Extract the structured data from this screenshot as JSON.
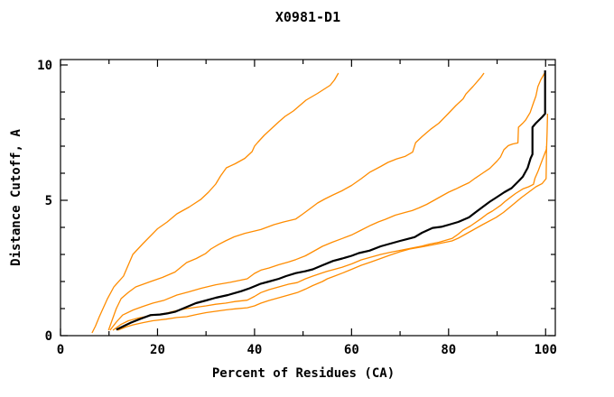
{
  "title": "X0981-D1",
  "chart_data": {
    "type": "line",
    "title": "X0981-D1",
    "xlabel": "Percent of Residues (CA)",
    "ylabel": "Distance Cutoff, A",
    "xlim": [
      0,
      102
    ],
    "ylim": [
      0,
      10.2
    ],
    "grid": false,
    "legend": null,
    "x_ticks_major": [
      0,
      20,
      40,
      60,
      80,
      100
    ],
    "x_ticks_minor": [
      10,
      30,
      50,
      70,
      90
    ],
    "y_ticks_major": [
      0,
      5,
      10
    ],
    "y_ticks_minor": [
      1,
      2,
      3,
      4,
      6,
      7,
      8,
      9
    ],
    "colors": {
      "model_orange": "#ff8c00",
      "highlight_black": "#000000",
      "frame": "#000000",
      "background": "#ffffff"
    },
    "series": [
      {
        "name": "orange-curve-1",
        "color": "#ff8c00",
        "width": 1.3,
        "points": [
          [
            6.5,
            0.1
          ],
          [
            7.2,
            0.35
          ],
          [
            8,
            0.7
          ],
          [
            9.7,
            1.37
          ],
          [
            11,
            1.8
          ],
          [
            13,
            2.2
          ],
          [
            14.9,
            3.0
          ],
          [
            17,
            3.4
          ],
          [
            20,
            3.95
          ],
          [
            22,
            4.2
          ],
          [
            24,
            4.5
          ],
          [
            26.5,
            4.75
          ],
          [
            28.9,
            5.03
          ],
          [
            30.5,
            5.3
          ],
          [
            32,
            5.6
          ],
          [
            33,
            5.9
          ],
          [
            34.2,
            6.2
          ],
          [
            36,
            6.35
          ],
          [
            38,
            6.55
          ],
          [
            39.5,
            6.8
          ],
          [
            40,
            7.0
          ],
          [
            40.7,
            7.15
          ],
          [
            42,
            7.4
          ],
          [
            43.8,
            7.7
          ],
          [
            45,
            7.9
          ],
          [
            46.3,
            8.1
          ],
          [
            48,
            8.3
          ],
          [
            50.6,
            8.7
          ],
          [
            53,
            8.95
          ],
          [
            55.6,
            9.25
          ],
          [
            56.5,
            9.45
          ],
          [
            57.3,
            9.7
          ]
        ]
      },
      {
        "name": "orange-curve-2",
        "color": "#ff8c00",
        "width": 1.3,
        "points": [
          [
            9.9,
            0.2
          ],
          [
            10.5,
            0.5
          ],
          [
            11.5,
            1.0
          ],
          [
            12.5,
            1.37
          ],
          [
            14,
            1.6
          ],
          [
            15.5,
            1.8
          ],
          [
            18.6,
            2.0
          ],
          [
            21,
            2.15
          ],
          [
            23.6,
            2.35
          ],
          [
            26,
            2.7
          ],
          [
            28,
            2.85
          ],
          [
            29.9,
            3.03
          ],
          [
            31,
            3.2
          ],
          [
            32.6,
            3.37
          ],
          [
            34,
            3.5
          ],
          [
            35.8,
            3.65
          ],
          [
            38,
            3.78
          ],
          [
            41.3,
            3.92
          ],
          [
            44,
            4.1
          ],
          [
            46,
            4.2
          ],
          [
            48.5,
            4.31
          ],
          [
            50,
            4.5
          ],
          [
            51.5,
            4.7
          ],
          [
            53,
            4.9
          ],
          [
            54.5,
            5.05
          ],
          [
            56.2,
            5.2
          ],
          [
            58,
            5.35
          ],
          [
            60,
            5.55
          ],
          [
            62,
            5.8
          ],
          [
            63.7,
            6.03
          ],
          [
            66,
            6.25
          ],
          [
            67.5,
            6.4
          ],
          [
            69.3,
            6.53
          ],
          [
            71,
            6.62
          ],
          [
            72.6,
            6.78
          ],
          [
            73.2,
            7.13
          ],
          [
            74.5,
            7.35
          ],
          [
            76.4,
            7.64
          ],
          [
            78,
            7.85
          ],
          [
            79.9,
            8.2
          ],
          [
            81.5,
            8.5
          ],
          [
            83,
            8.75
          ],
          [
            83.6,
            8.93
          ],
          [
            85,
            9.2
          ],
          [
            86.6,
            9.53
          ],
          [
            87.3,
            9.7
          ]
        ]
      },
      {
        "name": "orange-curve-3",
        "color": "#ff8c00",
        "width": 1.3,
        "points": [
          [
            10.2,
            0.2
          ],
          [
            11.5,
            0.5
          ],
          [
            12.8,
            0.76
          ],
          [
            15,
            0.95
          ],
          [
            17,
            1.08
          ],
          [
            19,
            1.2
          ],
          [
            21.4,
            1.31
          ],
          [
            24,
            1.5
          ],
          [
            26.5,
            1.62
          ],
          [
            29,
            1.75
          ],
          [
            32,
            1.88
          ],
          [
            35,
            1.97
          ],
          [
            38.5,
            2.1
          ],
          [
            40,
            2.3
          ],
          [
            41.3,
            2.42
          ],
          [
            43,
            2.5
          ],
          [
            45,
            2.62
          ],
          [
            47,
            2.72
          ],
          [
            48.5,
            2.81
          ],
          [
            50.5,
            2.95
          ],
          [
            52,
            3.1
          ],
          [
            54,
            3.3
          ],
          [
            56,
            3.45
          ],
          [
            58.1,
            3.59
          ],
          [
            60,
            3.72
          ],
          [
            62,
            3.9
          ],
          [
            64,
            4.08
          ],
          [
            65.5,
            4.2
          ],
          [
            67,
            4.3
          ],
          [
            69,
            4.45
          ],
          [
            71,
            4.55
          ],
          [
            72.5,
            4.62
          ],
          [
            73.9,
            4.72
          ],
          [
            75.5,
            4.85
          ],
          [
            77,
            5.0
          ],
          [
            78.5,
            5.15
          ],
          [
            80,
            5.3
          ],
          [
            81.5,
            5.42
          ],
          [
            83,
            5.55
          ],
          [
            84.2,
            5.65
          ],
          [
            85.5,
            5.82
          ],
          [
            87,
            6.0
          ],
          [
            88.5,
            6.18
          ],
          [
            90,
            6.45
          ],
          [
            90.7,
            6.6
          ],
          [
            91.4,
            6.87
          ],
          [
            92.3,
            7.02
          ],
          [
            93.2,
            7.08
          ],
          [
            94.3,
            7.12
          ],
          [
            94.4,
            7.7
          ],
          [
            95.3,
            7.85
          ],
          [
            95.9,
            7.97
          ],
          [
            96.8,
            8.24
          ],
          [
            97.5,
            8.6
          ],
          [
            98,
            8.85
          ],
          [
            98.4,
            9.2
          ],
          [
            99,
            9.45
          ],
          [
            99.8,
            9.7
          ]
        ]
      },
      {
        "name": "orange-curve-4",
        "color": "#ff8c00",
        "width": 1.3,
        "points": [
          [
            10.8,
            0.2
          ],
          [
            12.5,
            0.42
          ],
          [
            14,
            0.55
          ],
          [
            16,
            0.65
          ],
          [
            18,
            0.72
          ],
          [
            20,
            0.78
          ],
          [
            21.8,
            0.83
          ],
          [
            24,
            0.93
          ],
          [
            26,
            1.0
          ],
          [
            28,
            1.05
          ],
          [
            30,
            1.1
          ],
          [
            32,
            1.16
          ],
          [
            34,
            1.2
          ],
          [
            36,
            1.26
          ],
          [
            38.5,
            1.31
          ],
          [
            40,
            1.45
          ],
          [
            41.3,
            1.59
          ],
          [
            43,
            1.7
          ],
          [
            45,
            1.8
          ],
          [
            47,
            1.9
          ],
          [
            48.8,
            1.96
          ],
          [
            50.5,
            2.1
          ],
          [
            52,
            2.2
          ],
          [
            54,
            2.32
          ],
          [
            55,
            2.38
          ],
          [
            56.5,
            2.45
          ],
          [
            58.1,
            2.53
          ],
          [
            60,
            2.65
          ],
          [
            62,
            2.8
          ],
          [
            64,
            2.9
          ],
          [
            66,
            3.0
          ],
          [
            68,
            3.08
          ],
          [
            70,
            3.15
          ],
          [
            72,
            3.22
          ],
          [
            74.5,
            3.31
          ],
          [
            76,
            3.38
          ],
          [
            78,
            3.45
          ],
          [
            80.7,
            3.59
          ],
          [
            82,
            3.75
          ],
          [
            83,
            3.9
          ],
          [
            84.5,
            4.05
          ],
          [
            86.6,
            4.31
          ],
          [
            88,
            4.5
          ],
          [
            89,
            4.6
          ],
          [
            90.7,
            4.81
          ],
          [
            91.6,
            4.95
          ],
          [
            92.6,
            5.09
          ],
          [
            93.8,
            5.25
          ],
          [
            95.3,
            5.42
          ],
          [
            96.5,
            5.5
          ],
          [
            97.5,
            5.59
          ],
          [
            97.8,
            5.81
          ],
          [
            98.5,
            6.1
          ],
          [
            99.4,
            6.53
          ],
          [
            100.2,
            6.9
          ],
          [
            100.3,
            7.5
          ],
          [
            100.4,
            8.2
          ]
        ]
      },
      {
        "name": "orange-curve-5",
        "color": "#ff8c00",
        "width": 1.3,
        "points": [
          [
            11.8,
            0.2
          ],
          [
            13.5,
            0.32
          ],
          [
            15,
            0.4
          ],
          [
            17,
            0.48
          ],
          [
            19,
            0.55
          ],
          [
            21.8,
            0.61
          ],
          [
            24,
            0.67
          ],
          [
            26,
            0.7
          ],
          [
            28,
            0.78
          ],
          [
            30,
            0.85
          ],
          [
            32,
            0.9
          ],
          [
            34,
            0.95
          ],
          [
            36,
            0.99
          ],
          [
            38.5,
            1.03
          ],
          [
            40,
            1.1
          ],
          [
            41.3,
            1.2
          ],
          [
            43,
            1.3
          ],
          [
            45,
            1.4
          ],
          [
            47,
            1.5
          ],
          [
            48.8,
            1.59
          ],
          [
            50.5,
            1.72
          ],
          [
            52,
            1.85
          ],
          [
            54,
            2.0
          ],
          [
            55,
            2.1
          ],
          [
            56.5,
            2.2
          ],
          [
            58.1,
            2.31
          ],
          [
            60,
            2.45
          ],
          [
            62,
            2.6
          ],
          [
            64,
            2.72
          ],
          [
            66,
            2.85
          ],
          [
            68,
            2.98
          ],
          [
            70,
            3.1
          ],
          [
            72,
            3.2
          ],
          [
            74.5,
            3.28
          ],
          [
            76,
            3.33
          ],
          [
            78,
            3.4
          ],
          [
            80.7,
            3.5
          ],
          [
            82,
            3.6
          ],
          [
            83,
            3.7
          ],
          [
            85,
            3.9
          ],
          [
            87,
            4.1
          ],
          [
            89.8,
            4.37
          ],
          [
            91.3,
            4.55
          ],
          [
            93,
            4.8
          ],
          [
            95,
            5.1
          ],
          [
            96.5,
            5.3
          ],
          [
            98,
            5.5
          ],
          [
            99.3,
            5.62
          ],
          [
            100.1,
            5.8
          ],
          [
            100.15,
            6.4
          ],
          [
            100.2,
            7.0
          ]
        ]
      },
      {
        "name": "black-curve",
        "color": "#000000",
        "width": 2.2,
        "points": [
          [
            11.5,
            0.22
          ],
          [
            13,
            0.35
          ],
          [
            14.5,
            0.48
          ],
          [
            16.5,
            0.62
          ],
          [
            18.6,
            0.76
          ],
          [
            20.5,
            0.78
          ],
          [
            22,
            0.82
          ],
          [
            23.6,
            0.88
          ],
          [
            25.5,
            1.02
          ],
          [
            27.9,
            1.2
          ],
          [
            30,
            1.3
          ],
          [
            32,
            1.4
          ],
          [
            34.5,
            1.5
          ],
          [
            37.2,
            1.64
          ],
          [
            39,
            1.75
          ],
          [
            41.3,
            1.92
          ],
          [
            43,
            2.0
          ],
          [
            45,
            2.1
          ],
          [
            46.5,
            2.2
          ],
          [
            48.5,
            2.31
          ],
          [
            50.5,
            2.38
          ],
          [
            52,
            2.45
          ],
          [
            54,
            2.6
          ],
          [
            56.2,
            2.76
          ],
          [
            58.1,
            2.85
          ],
          [
            60,
            2.95
          ],
          [
            61.5,
            3.05
          ],
          [
            63.7,
            3.14
          ],
          [
            66,
            3.3
          ],
          [
            68,
            3.4
          ],
          [
            70,
            3.5
          ],
          [
            71.5,
            3.57
          ],
          [
            73,
            3.64
          ],
          [
            74.5,
            3.8
          ],
          [
            76.7,
            3.98
          ],
          [
            78.5,
            4.02
          ],
          [
            80.1,
            4.1
          ],
          [
            82,
            4.2
          ],
          [
            84.2,
            4.37
          ],
          [
            85.5,
            4.55
          ],
          [
            87,
            4.75
          ],
          [
            88.5,
            4.95
          ],
          [
            89.8,
            5.1
          ],
          [
            91.5,
            5.3
          ],
          [
            93,
            5.45
          ],
          [
            94.5,
            5.72
          ],
          [
            95.3,
            5.87
          ],
          [
            96.3,
            6.2
          ],
          [
            96.9,
            6.55
          ],
          [
            97.3,
            6.7
          ],
          [
            97.3,
            7.7
          ],
          [
            98,
            7.85
          ],
          [
            99.3,
            8.08
          ],
          [
            99.9,
            8.2
          ],
          [
            99.9,
            9.8
          ]
        ]
      }
    ]
  }
}
